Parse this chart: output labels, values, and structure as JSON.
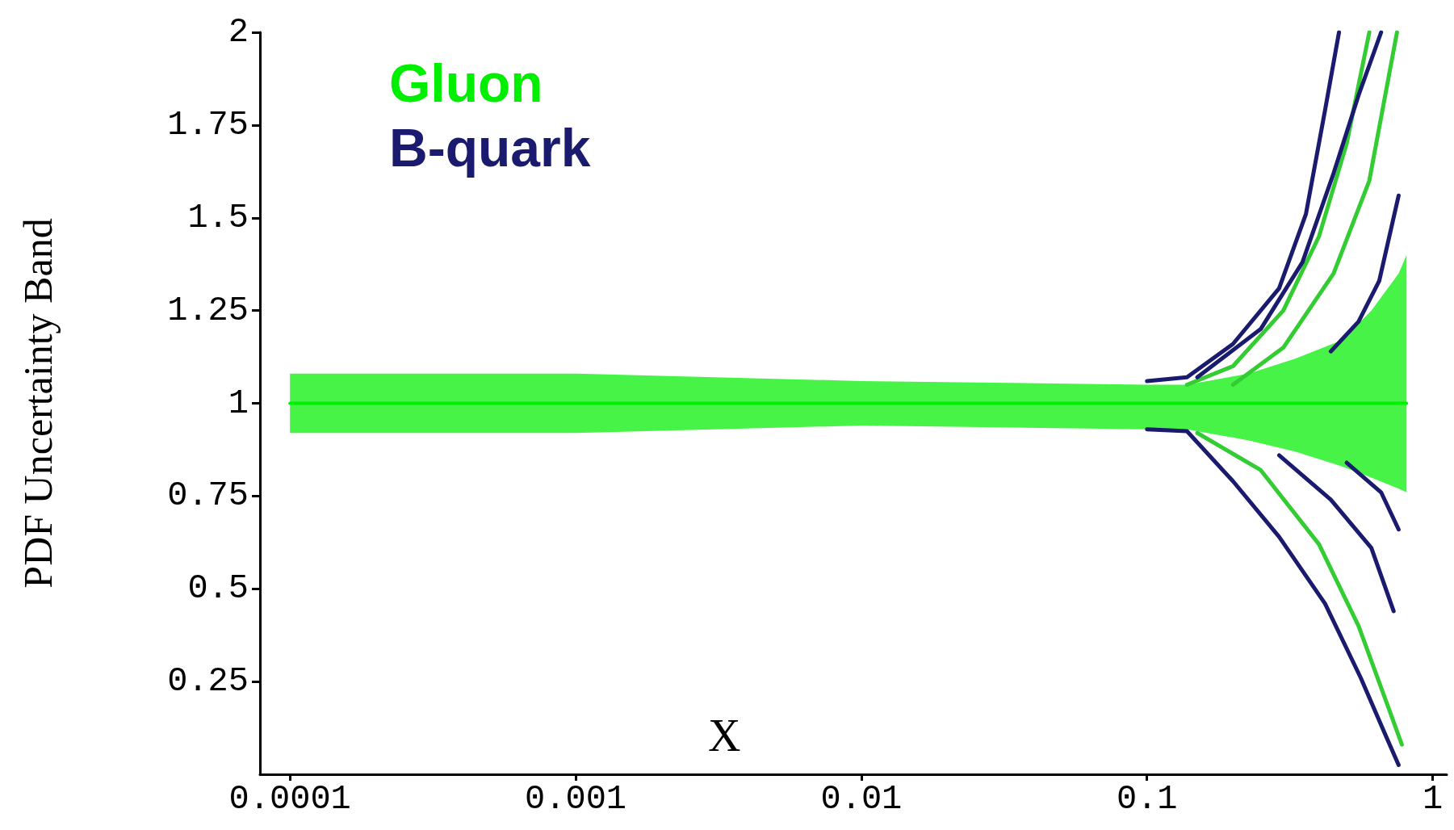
{
  "chart_data": {
    "type": "line",
    "xlabel": "X",
    "ylabel": "PDF Uncertainty Band",
    "log": "x",
    "legend": "top left",
    "grid": false,
    "marker": "none",
    "line_style": "solid",
    "xlim": [
      7.85e-05,
      1.12
    ],
    "xticks": [
      0.0001,
      0.001,
      0.01,
      0.1,
      1
    ],
    "ylim": [
      0,
      2
    ],
    "yticks": [
      0.25,
      0.5,
      0.75,
      1,
      1.25,
      1.5,
      1.75,
      2
    ],
    "series": [
      {
        "name": "Gluon",
        "color": "#00ee00",
        "x": [
          0.0001,
          0.001,
          0.01,
          0.1,
          0.138,
          0.227,
          0.33,
          0.48,
          0.61,
          0.76,
          0.81
        ],
        "values": [
          1,
          1,
          1,
          1,
          1,
          1,
          1,
          1,
          1,
          1,
          1
        ],
        "lower": [
          0.92,
          0.92,
          0.94,
          0.93,
          0.93,
          0.9,
          0.87,
          0.83,
          0.8,
          0.77,
          0.76
        ],
        "upper": [
          1.08,
          1.08,
          1.06,
          1.05,
          1.05,
          1.08,
          1.12,
          1.17,
          1.25,
          1.35,
          1.4
        ]
      },
      {
        "color": "#33cc33",
        "x": [
          0.138,
          0.2,
          0.3,
          0.4,
          0.5,
          0.6
        ],
        "values": [
          1.05,
          1.1,
          1.25,
          1.45,
          1.7,
          2.0
        ]
      },
      {
        "color": "#33cc33",
        "x": [
          0.2,
          0.3,
          0.45,
          0.6,
          0.75
        ],
        "values": [
          1.05,
          1.15,
          1.35,
          1.6,
          2.0
        ]
      },
      {
        "color": "#33cc33",
        "x": [
          0.15,
          0.25,
          0.4,
          0.55,
          0.7,
          0.78
        ],
        "values": [
          0.92,
          0.82,
          0.62,
          0.4,
          0.18,
          0.08
        ]
      },
      {
        "name": "B-quark",
        "color": "#1a1a6e",
        "x": [
          0.1,
          0.138,
          0.2,
          0.29,
          0.36,
          0.42,
          0.47
        ],
        "values": [
          1.06,
          1.07,
          1.16,
          1.31,
          1.51,
          1.79,
          2.0
        ]
      },
      {
        "color": "#1a1a6e",
        "x": [
          0.15,
          0.25,
          0.35,
          0.45,
          0.55,
          0.66
        ],
        "values": [
          1.07,
          1.2,
          1.38,
          1.62,
          1.83,
          2.0
        ]
      },
      {
        "color": "#1a1a6e",
        "x": [
          0.44,
          0.55,
          0.65,
          0.76
        ],
        "values": [
          1.14,
          1.22,
          1.33,
          1.56
        ]
      },
      {
        "color": "#1a1a6e",
        "x": [
          0.1,
          0.138,
          0.2,
          0.29,
          0.42,
          0.56,
          0.68,
          0.76
        ],
        "values": [
          0.93,
          0.925,
          0.79,
          0.64,
          0.46,
          0.26,
          0.11,
          0.025
        ]
      },
      {
        "color": "#1a1a6e",
        "x": [
          0.29,
          0.44,
          0.61,
          0.73
        ],
        "values": [
          0.86,
          0.74,
          0.61,
          0.44
        ]
      },
      {
        "color": "#1a1a6e",
        "x": [
          0.5,
          0.66,
          0.76
        ],
        "values": [
          0.84,
          0.76,
          0.66
        ]
      }
    ]
  }
}
